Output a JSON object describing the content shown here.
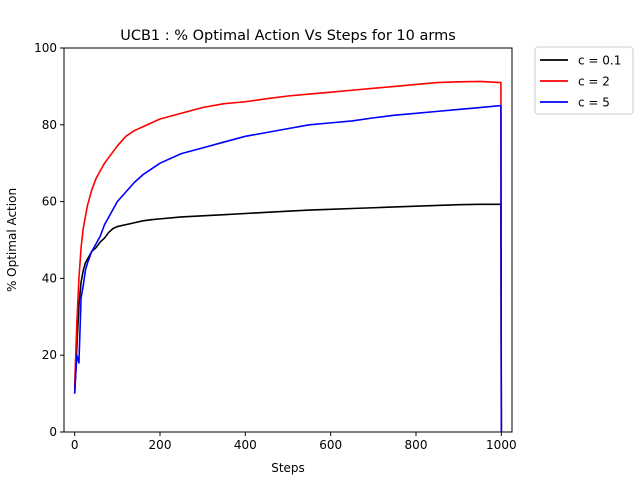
{
  "chart_data": {
    "type": "line",
    "title": "UCB1 : % Optimal Action Vs Steps for 10 arms",
    "xlabel": "Steps",
    "ylabel": "% Optimal Action",
    "xlim": [
      -25,
      1025
    ],
    "ylim": [
      0,
      100
    ],
    "xticks": [
      0,
      200,
      400,
      600,
      800,
      1000
    ],
    "yticks": [
      0,
      20,
      40,
      60,
      80,
      100
    ],
    "xtick_labels": [
      "0",
      "200",
      "400",
      "600",
      "800",
      "1000"
    ],
    "ytick_labels": [
      "0",
      "20",
      "40",
      "60",
      "80",
      "100"
    ],
    "grid": false,
    "legend_position": "outside upper right",
    "series": [
      {
        "name": "c = 0.1",
        "color": "#000000",
        "x": [
          0,
          5,
          10,
          15,
          20,
          25,
          30,
          40,
          50,
          60,
          70,
          80,
          90,
          100,
          120,
          140,
          160,
          180,
          200,
          250,
          300,
          350,
          400,
          450,
          500,
          550,
          600,
          650,
          700,
          750,
          800,
          850,
          900,
          950,
          999,
          1000
        ],
        "y": [
          10,
          22,
          33,
          39,
          42,
          44,
          45,
          47,
          48,
          49.5,
          50.5,
          52,
          53,
          53.5,
          54,
          54.5,
          55,
          55.3,
          55.5,
          56,
          56.3,
          56.6,
          56.9,
          57.2,
          57.5,
          57.8,
          58,
          58.2,
          58.4,
          58.6,
          58.8,
          59,
          59.2,
          59.3,
          59.3,
          0
        ]
      },
      {
        "name": "c = 2",
        "color": "#ff0000",
        "x": [
          0,
          5,
          10,
          15,
          20,
          25,
          30,
          40,
          50,
          60,
          70,
          80,
          90,
          100,
          120,
          140,
          160,
          180,
          200,
          250,
          300,
          350,
          400,
          450,
          500,
          550,
          600,
          650,
          700,
          750,
          800,
          850,
          900,
          950,
          999,
          1000
        ],
        "y": [
          12,
          28,
          40,
          48,
          53,
          56,
          59,
          63,
          66,
          68,
          70,
          71.5,
          73,
          74.5,
          77,
          78.5,
          79.5,
          80.5,
          81.5,
          83,
          84.5,
          85.5,
          86,
          86.8,
          87.5,
          88,
          88.5,
          89,
          89.5,
          90,
          90.5,
          91,
          91.2,
          91.3,
          91,
          0
        ]
      },
      {
        "name": "c = 5",
        "color": "#0000ff",
        "x": [
          0,
          5,
          10,
          15,
          20,
          25,
          30,
          40,
          50,
          60,
          70,
          80,
          90,
          100,
          120,
          140,
          160,
          180,
          200,
          250,
          300,
          350,
          400,
          450,
          500,
          550,
          600,
          650,
          700,
          750,
          800,
          850,
          900,
          950,
          999,
          1000
        ],
        "y": [
          10,
          20,
          18,
          35,
          38,
          42,
          44,
          47,
          49,
          51,
          54,
          56,
          58,
          60,
          62.5,
          65,
          67,
          68.5,
          70,
          72.5,
          74,
          75.5,
          77,
          78,
          79,
          80,
          80.5,
          81,
          81.8,
          82.5,
          83,
          83.5,
          84,
          84.5,
          85,
          0
        ]
      }
    ]
  }
}
